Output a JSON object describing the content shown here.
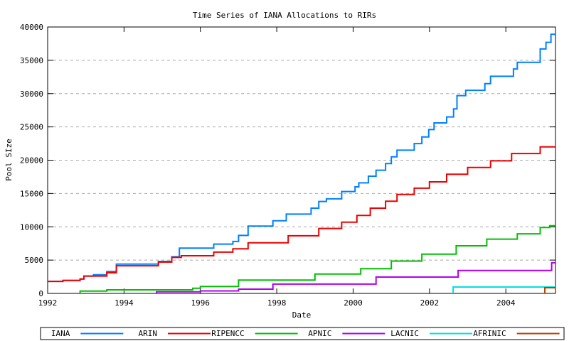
{
  "chart_data": {
    "type": "line",
    "subtype": "steps",
    "title": "Time Series of IANA Allocations to RIRs",
    "xlabel": "Date",
    "ylabel": "Pool SIze",
    "xlim": [
      1992,
      2005.3
    ],
    "ylim": [
      0,
      40000
    ],
    "xticks": [
      1992,
      1994,
      1996,
      1998,
      2000,
      2002,
      2004
    ],
    "yticks": [
      0,
      5000,
      10000,
      15000,
      20000,
      25000,
      30000,
      35000,
      40000
    ],
    "grid": {
      "horizontal": true,
      "style": "dashed",
      "color": "#a8a8a8"
    },
    "legend": {
      "position": "bottom",
      "border": true
    },
    "frame_color": "#000000",
    "series": [
      {
        "name": "IANA",
        "color": "#0080ff",
        "points": [
          [
            1992.0,
            1800
          ],
          [
            1992.4,
            1950
          ],
          [
            1992.85,
            2150
          ],
          [
            1992.95,
            2600
          ],
          [
            1993.2,
            2800
          ],
          [
            1993.55,
            3300
          ],
          [
            1993.8,
            4400
          ],
          [
            1994.9,
            4800
          ],
          [
            1995.25,
            5500
          ],
          [
            1995.45,
            6800
          ],
          [
            1996.35,
            7400
          ],
          [
            1996.85,
            7800
          ],
          [
            1997.0,
            8700
          ],
          [
            1997.25,
            10100
          ],
          [
            1997.9,
            10900
          ],
          [
            1998.25,
            11900
          ],
          [
            1998.9,
            12800
          ],
          [
            1999.1,
            13800
          ],
          [
            1999.3,
            14200
          ],
          [
            1999.7,
            15300
          ],
          [
            2000.05,
            16000
          ],
          [
            2000.15,
            16600
          ],
          [
            2000.4,
            17600
          ],
          [
            2000.6,
            18500
          ],
          [
            2000.85,
            19500
          ],
          [
            2001.0,
            20500
          ],
          [
            2001.15,
            21500
          ],
          [
            2001.6,
            22500
          ],
          [
            2001.8,
            23500
          ],
          [
            2001.98,
            24600
          ],
          [
            2002.12,
            25600
          ],
          [
            2002.45,
            26500
          ],
          [
            2002.63,
            27700
          ],
          [
            2002.72,
            29700
          ],
          [
            2002.95,
            30500
          ],
          [
            2003.45,
            31500
          ],
          [
            2003.6,
            32600
          ],
          [
            2004.2,
            33700
          ],
          [
            2004.3,
            34700
          ],
          [
            2004.9,
            36700
          ],
          [
            2005.05,
            37700
          ],
          [
            2005.18,
            38900
          ]
        ]
      },
      {
        "name": "ARIN",
        "color": "#ee0000",
        "points": [
          [
            1992.0,
            1800
          ],
          [
            1992.4,
            1950
          ],
          [
            1992.85,
            2150
          ],
          [
            1992.95,
            2600
          ],
          [
            1993.55,
            3100
          ],
          [
            1993.8,
            4150
          ],
          [
            1994.9,
            4700
          ],
          [
            1995.25,
            5400
          ],
          [
            1995.5,
            5650
          ],
          [
            1996.35,
            6200
          ],
          [
            1996.85,
            6700
          ],
          [
            1997.25,
            7600
          ],
          [
            1998.3,
            8650
          ],
          [
            1999.1,
            9750
          ],
          [
            1999.7,
            10700
          ],
          [
            2000.1,
            11700
          ],
          [
            2000.45,
            12800
          ],
          [
            2000.85,
            13850
          ],
          [
            2001.15,
            14850
          ],
          [
            2001.6,
            15800
          ],
          [
            2002.0,
            16750
          ],
          [
            2002.45,
            17900
          ],
          [
            2003.0,
            18900
          ],
          [
            2003.6,
            19900
          ],
          [
            2004.15,
            21000
          ],
          [
            2004.9,
            22000
          ]
        ]
      },
      {
        "name": "RIPENCC",
        "color": "#00c000",
        "points": [
          [
            1992.85,
            0
          ],
          [
            1992.85,
            350
          ],
          [
            1993.55,
            530
          ],
          [
            1995.8,
            780
          ],
          [
            1996.0,
            1050
          ],
          [
            1997.0,
            2000
          ],
          [
            1999.0,
            2900
          ],
          [
            2000.2,
            3700
          ],
          [
            2001.0,
            4850
          ],
          [
            2001.8,
            5900
          ],
          [
            2002.7,
            7150
          ],
          [
            2003.5,
            8150
          ],
          [
            2004.3,
            8950
          ],
          [
            2004.9,
            9900
          ],
          [
            2005.15,
            10150
          ]
        ]
      },
      {
        "name": "APNIC",
        "color": "#b000f0",
        "points": [
          [
            1994.85,
            0
          ],
          [
            1994.85,
            230
          ],
          [
            1996.0,
            370
          ],
          [
            1997.0,
            640
          ],
          [
            1997.9,
            1400
          ],
          [
            2000.6,
            2450
          ],
          [
            2002.75,
            3450
          ],
          [
            2005.2,
            4600
          ]
        ]
      },
      {
        "name": "LACNIC",
        "color": "#00e0e0",
        "points": [
          [
            2002.62,
            0
          ],
          [
            2002.62,
            960
          ]
        ]
      },
      {
        "name": "AFRINIC",
        "color": "#c04000",
        "points": [
          [
            2005.02,
            0
          ],
          [
            2005.02,
            850
          ]
        ]
      }
    ]
  }
}
